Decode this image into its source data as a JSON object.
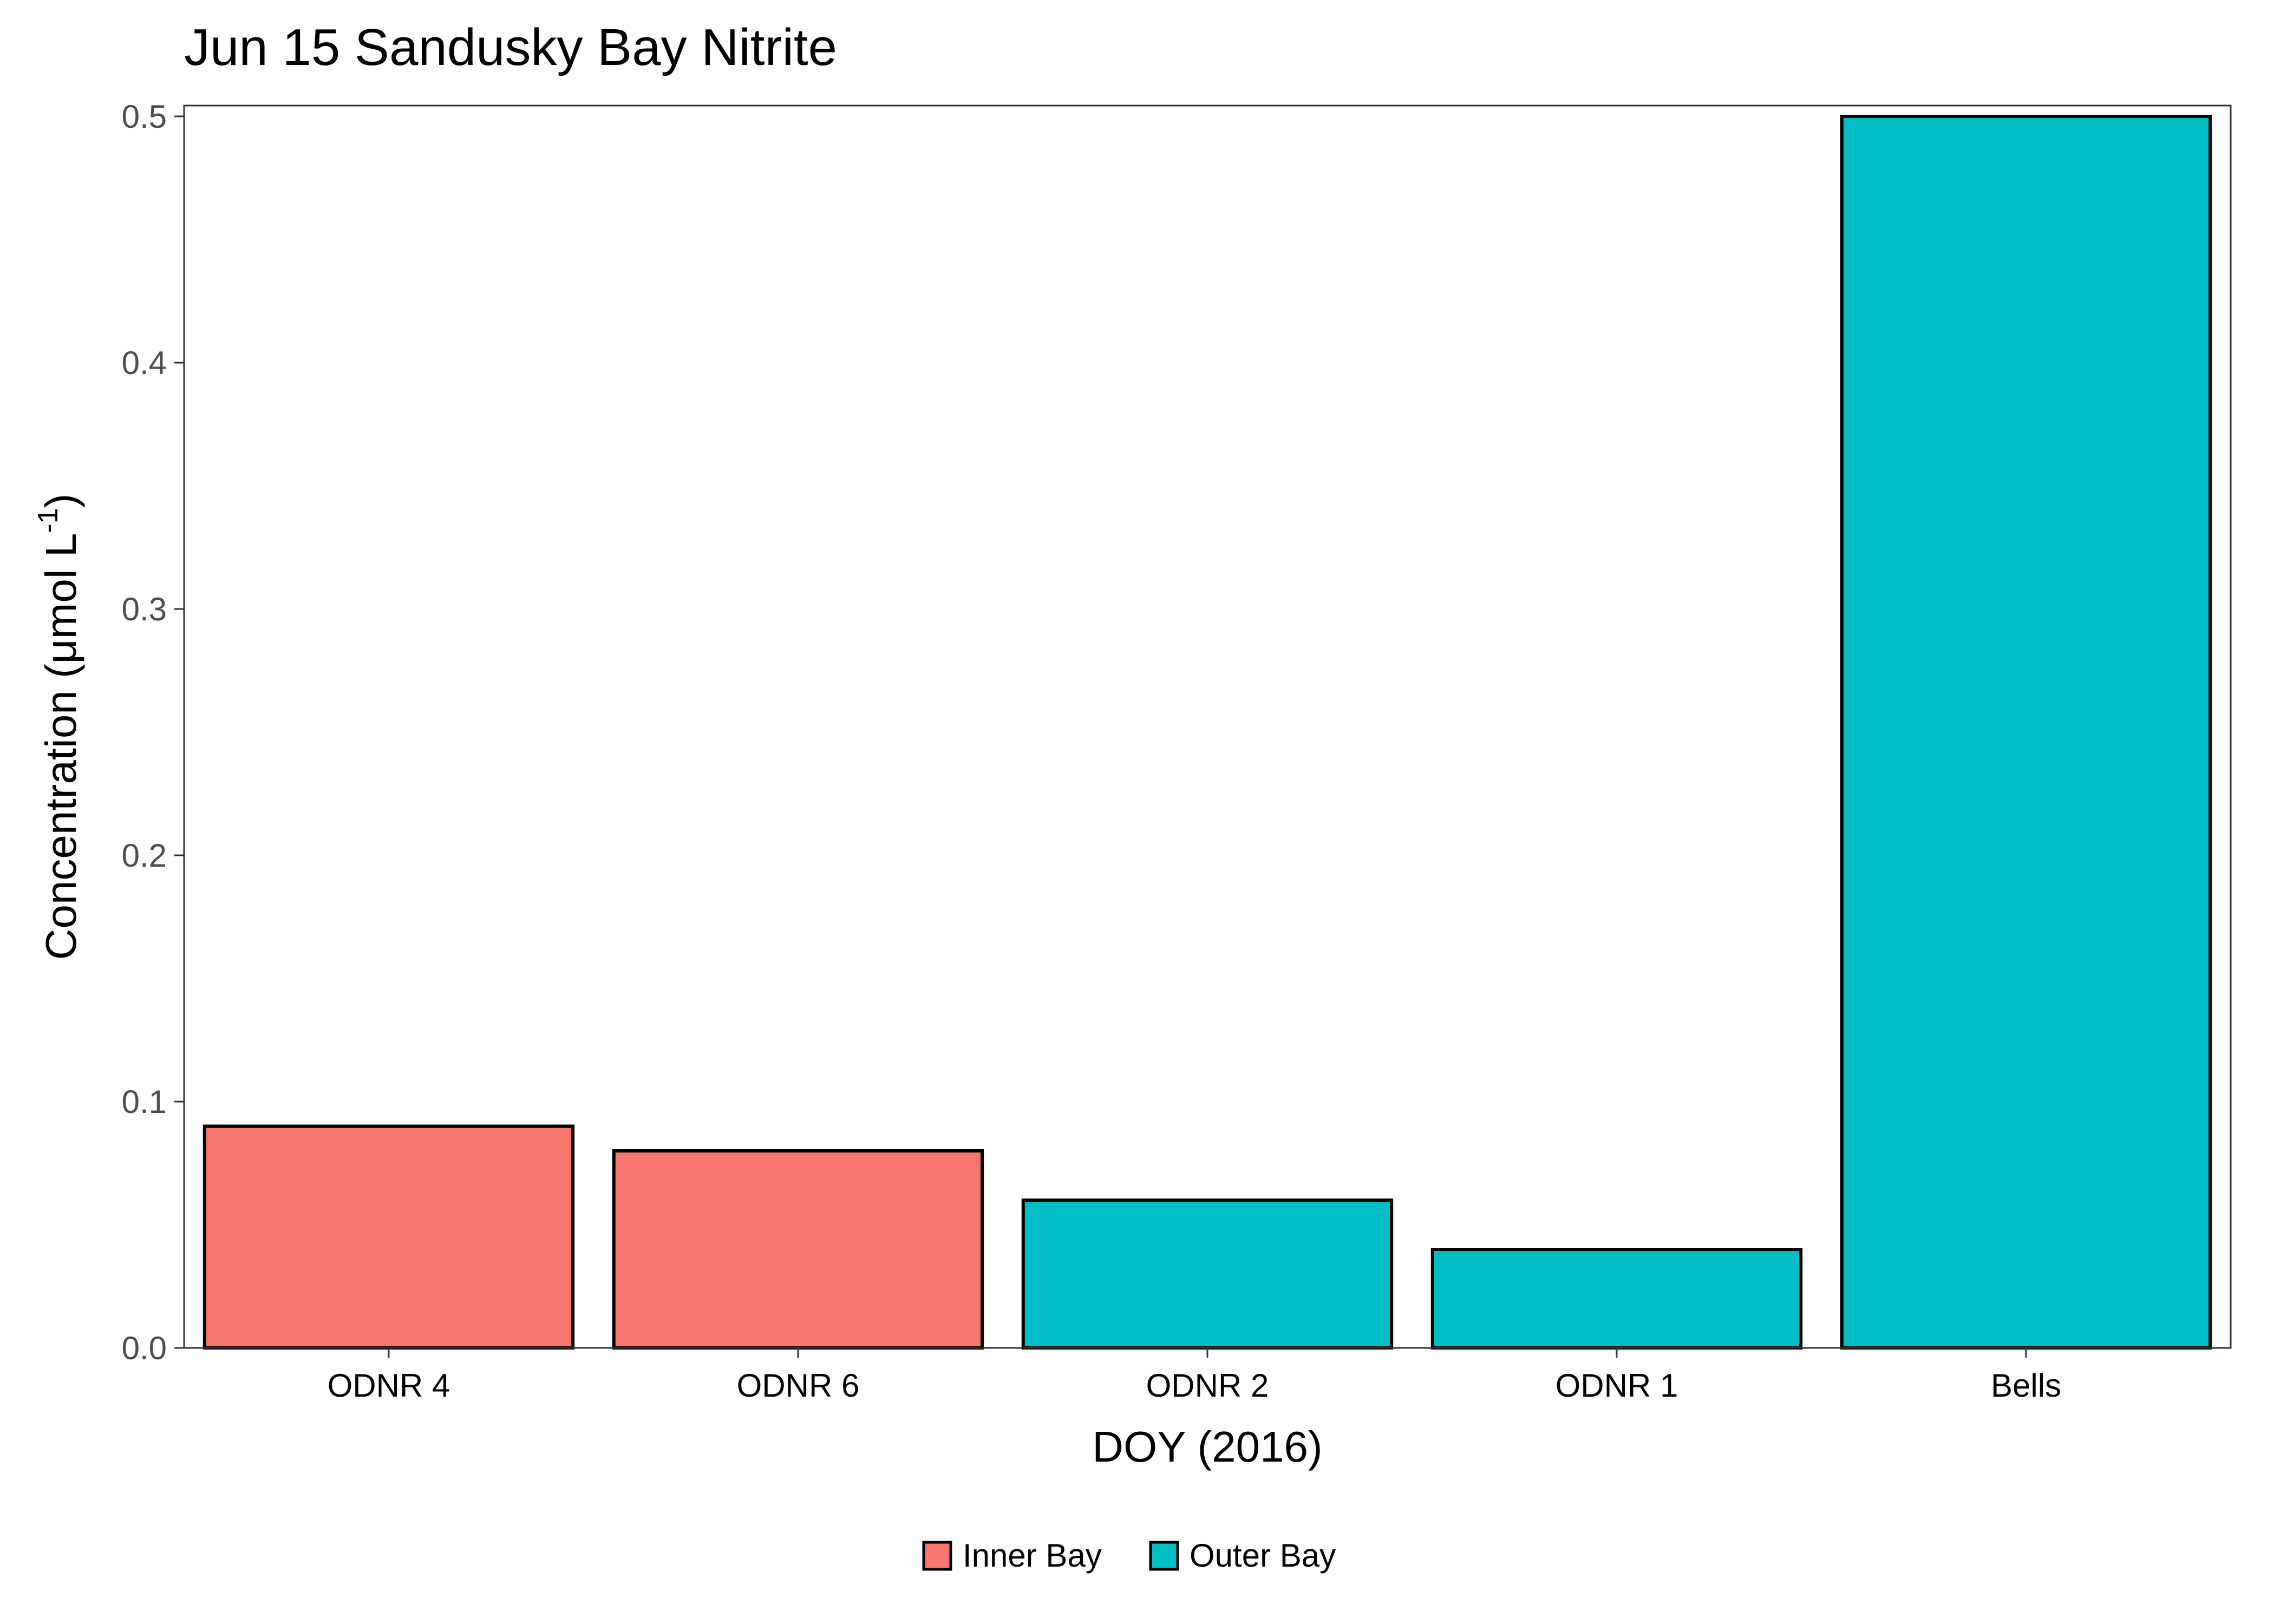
{
  "chart_data": {
    "type": "bar",
    "title": "Jun 15 Sandusky Bay Nitrite",
    "xlabel": "DOY (2016)",
    "ylabel_main": "Concentration (μmol L",
    "ylabel_sup": "-1",
    "ylabel_close": ")",
    "categories": [
      "ODNR 4",
      "ODNR 6",
      "ODNR 2",
      "ODNR 1",
      "Bells"
    ],
    "values": [
      0.09,
      0.08,
      0.06,
      0.04,
      0.5
    ],
    "groups": [
      "Inner Bay",
      "Inner Bay",
      "Outer Bay",
      "Outer Bay",
      "Outer Bay"
    ],
    "ylim": [
      0,
      0.5
    ],
    "yticks": [
      0.0,
      0.1,
      0.2,
      0.3,
      0.4,
      0.5
    ],
    "ytick_labels": [
      "0.0",
      "0.1",
      "0.2",
      "0.3",
      "0.4",
      "0.5"
    ],
    "grid": false,
    "legend": {
      "placement": "bottom",
      "entries": [
        {
          "name": "Inner Bay",
          "color": "#F8766D"
        },
        {
          "name": "Outer Bay",
          "color": "#00BFC4"
        }
      ]
    }
  }
}
